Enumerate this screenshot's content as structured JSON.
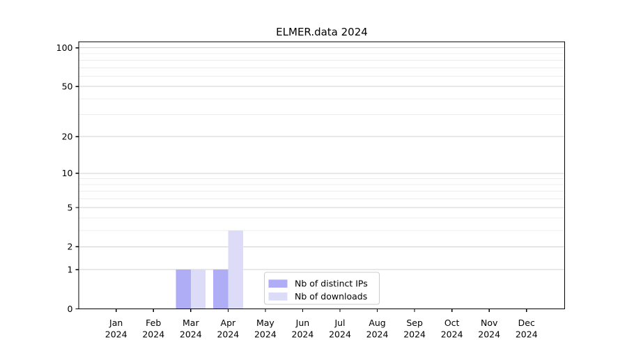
{
  "chart_data": {
    "type": "bar",
    "title": "ELMER.data 2024",
    "categories": [
      "Jan",
      "Feb",
      "Mar",
      "Apr",
      "May",
      "Jun",
      "Jul",
      "Aug",
      "Sep",
      "Oct",
      "Nov",
      "Dec"
    ],
    "category_year": "2024",
    "series": [
      {
        "name": "Nb of distinct IPs",
        "color": "#aeadf6",
        "values": [
          0,
          0,
          1,
          1,
          0,
          0,
          0,
          0,
          0,
          0,
          0,
          0
        ]
      },
      {
        "name": "Nb of downloads",
        "color": "#dddcf8",
        "values": [
          0,
          0,
          1,
          3,
          0,
          0,
          0,
          0,
          0,
          0,
          0,
          0
        ]
      }
    ],
    "xlabel": "",
    "ylabel": "",
    "yscale": "log1p",
    "ylim": [
      0,
      112
    ],
    "yticks": [
      0,
      1,
      2,
      5,
      10,
      20,
      50,
      100
    ],
    "ytick_labels": [
      "0",
      "1",
      "2",
      "5",
      "10",
      "20",
      "50",
      "100"
    ],
    "yticks_minor": [
      3,
      4,
      6,
      7,
      8,
      9,
      30,
      40,
      60,
      70,
      80,
      90
    ],
    "grid": "horizontal",
    "legend_position": "lower center",
    "colors": {
      "major_grid": "#d0d0d0",
      "minor_grid": "#ececec",
      "axis": "#000000",
      "legend_border": "#cccccc",
      "background": "#ffffff"
    }
  }
}
